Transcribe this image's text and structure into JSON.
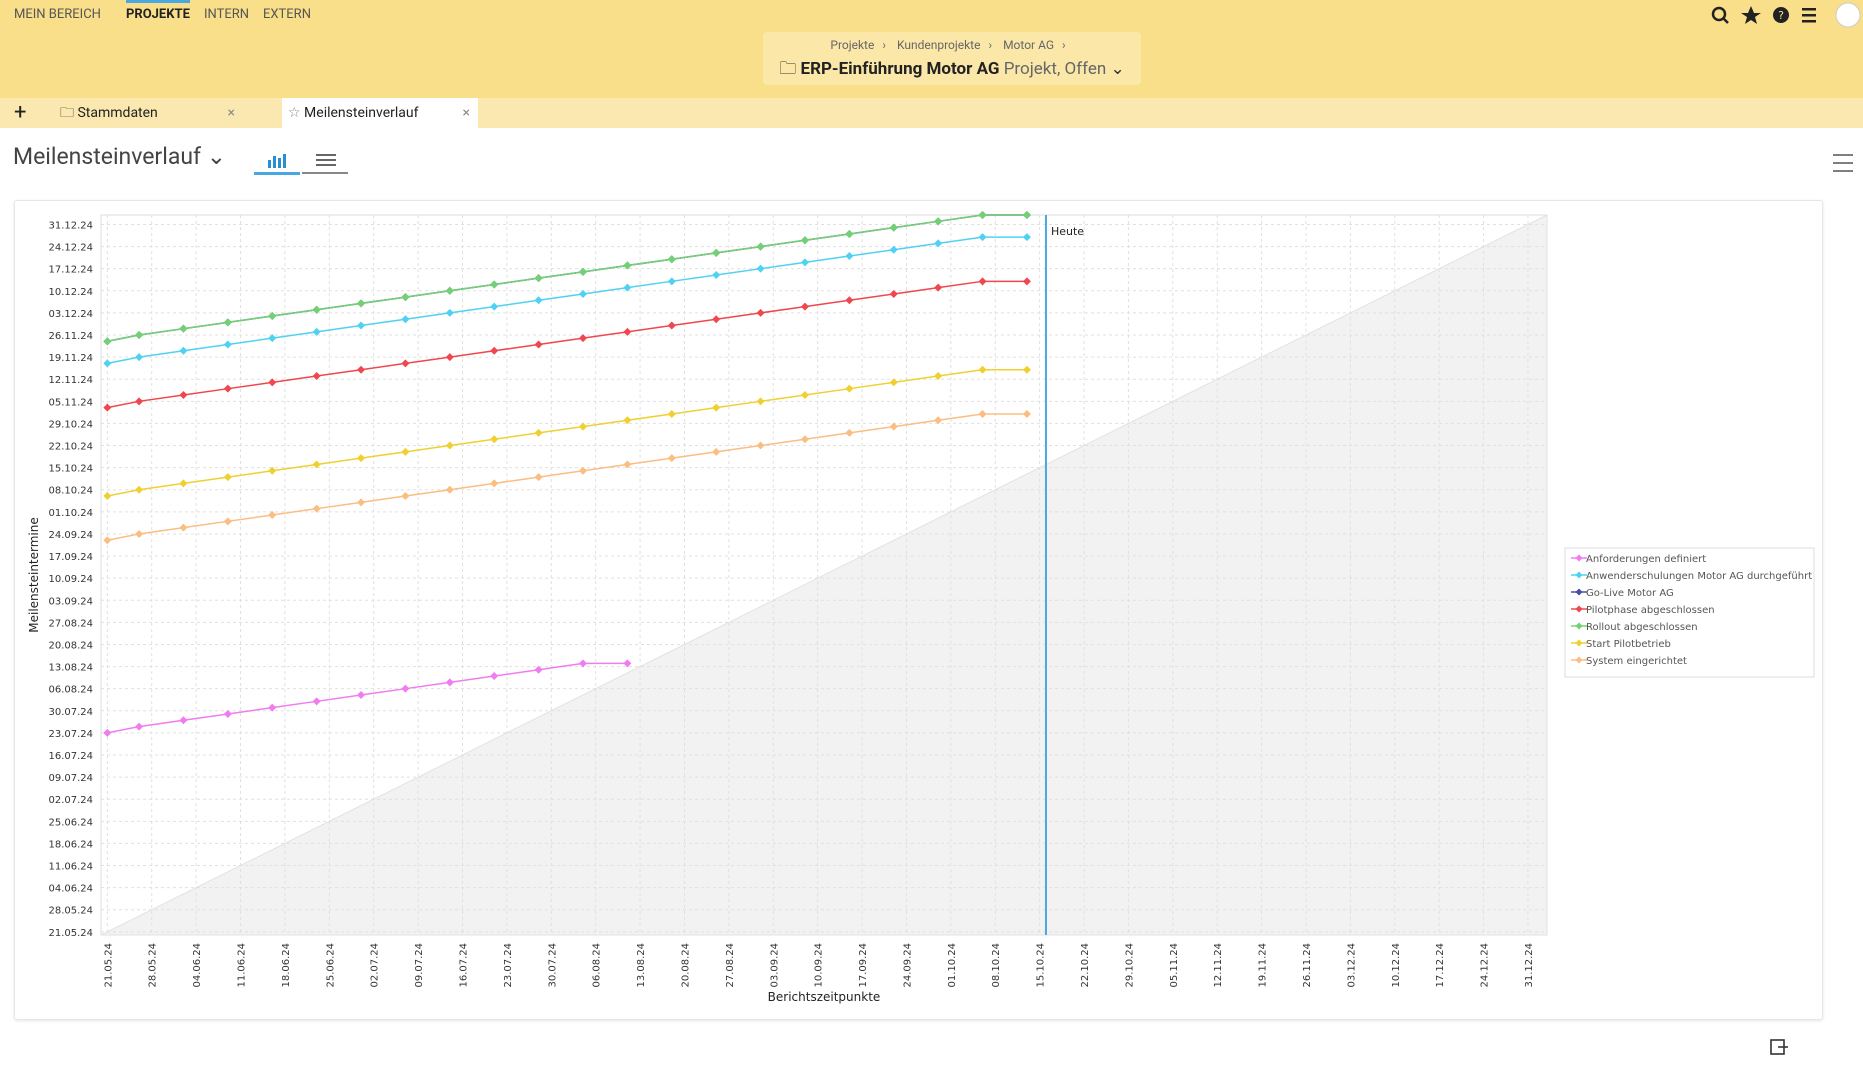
{
  "ui": {
    "nav": [
      "MEIN BEREICH",
      "PROJEKTE",
      "INTERN",
      "EXTERN"
    ],
    "breadcrumb": [
      "Projekte",
      "Kundenprojekte",
      "Motor AG"
    ],
    "project_title": "ERP-Einführung Motor AG",
    "project_status": "Projekt, Offen",
    "tabs": [
      "Stammdaten",
      "Meilensteinverlauf"
    ],
    "page_title": "Meilensteinverlauf"
  },
  "chart_data": {
    "type": "line",
    "x_label": "Berichtszeitpunkte",
    "y_label": "Meilensteintermine",
    "grid": true,
    "legend": "right",
    "annotation": {
      "text": "Heute",
      "x": "2024-10-16",
      "color": "#4aa8e0"
    },
    "x": [
      "2024-05-21",
      "2024-05-26",
      "2024-06-02",
      "2024-06-09",
      "2024-06-16",
      "2024-06-23",
      "2024-06-30",
      "2024-07-07",
      "2024-07-14",
      "2024-07-21",
      "2024-07-28",
      "2024-08-04",
      "2024-08-11",
      "2024-08-18",
      "2024-08-25",
      "2024-09-01",
      "2024-09-08",
      "2024-09-15",
      "2024-09-22",
      "2024-09-29",
      "2024-10-06",
      "2024-10-13"
    ],
    "xlim": [
      "2024-05-20",
      "2025-01-03"
    ],
    "ylim": [
      "2024-05-20",
      "2025-01-03"
    ],
    "xticks": [
      {
        "value": "2024-05-21",
        "label": "21.05.24"
      },
      {
        "value": "2024-05-28",
        "label": "28.05.24"
      },
      {
        "value": "2024-06-04",
        "label": "04.06.24"
      },
      {
        "value": "2024-06-11",
        "label": "11.06.24"
      },
      {
        "value": "2024-06-18",
        "label": "18.06.24"
      },
      {
        "value": "2024-06-25",
        "label": "25.06.24"
      },
      {
        "value": "2024-07-02",
        "label": "02.07.24"
      },
      {
        "value": "2024-07-09",
        "label": "09.07.24"
      },
      {
        "value": "2024-07-16",
        "label": "16.07.24"
      },
      {
        "value": "2024-07-23",
        "label": "23.07.24"
      },
      {
        "value": "2024-07-30",
        "label": "30.07.24"
      },
      {
        "value": "2024-08-06",
        "label": "06.08.24"
      },
      {
        "value": "2024-08-13",
        "label": "13.08.24"
      },
      {
        "value": "2024-08-20",
        "label": "20.08.24"
      },
      {
        "value": "2024-08-27",
        "label": "27.08.24"
      },
      {
        "value": "2024-09-03",
        "label": "03.09.24"
      },
      {
        "value": "2024-09-10",
        "label": "10.09.24"
      },
      {
        "value": "2024-09-17",
        "label": "17.09.24"
      },
      {
        "value": "2024-09-24",
        "label": "24.09.24"
      },
      {
        "value": "2024-10-01",
        "label": "01.10.24"
      },
      {
        "value": "2024-10-08",
        "label": "08.10.24"
      },
      {
        "value": "2024-10-15",
        "label": "15.10.24"
      },
      {
        "value": "2024-10-22",
        "label": "22.10.24"
      },
      {
        "value": "2024-10-29",
        "label": "29.10.24"
      },
      {
        "value": "2024-11-05",
        "label": "05.11.24"
      },
      {
        "value": "2024-11-12",
        "label": "12.11.24"
      },
      {
        "value": "2024-11-19",
        "label": "19.11.24"
      },
      {
        "value": "2024-11-26",
        "label": "26.11.24"
      },
      {
        "value": "2024-12-03",
        "label": "03.12.24"
      },
      {
        "value": "2024-12-10",
        "label": "10.12.24"
      },
      {
        "value": "2024-12-17",
        "label": "17.12.24"
      },
      {
        "value": "2024-12-24",
        "label": "24.12.24"
      },
      {
        "value": "2024-12-31",
        "label": "31.12.24"
      }
    ],
    "yticks": [
      {
        "value": "2024-05-21",
        "label": "21.05.24"
      },
      {
        "value": "2024-05-28",
        "label": "28.05.24"
      },
      {
        "value": "2024-06-04",
        "label": "04.06.24"
      },
      {
        "value": "2024-06-11",
        "label": "11.06.24"
      },
      {
        "value": "2024-06-18",
        "label": "18.06.24"
      },
      {
        "value": "2024-06-25",
        "label": "25.06.24"
      },
      {
        "value": "2024-07-02",
        "label": "02.07.24"
      },
      {
        "value": "2024-07-09",
        "label": "09.07.24"
      },
      {
        "value": "2024-07-16",
        "label": "16.07.24"
      },
      {
        "value": "2024-07-23",
        "label": "23.07.24"
      },
      {
        "value": "2024-07-30",
        "label": "30.07.24"
      },
      {
        "value": "2024-08-06",
        "label": "06.08.24"
      },
      {
        "value": "2024-08-13",
        "label": "13.08.24"
      },
      {
        "value": "2024-08-20",
        "label": "20.08.24"
      },
      {
        "value": "2024-08-27",
        "label": "27.08.24"
      },
      {
        "value": "2024-09-03",
        "label": "03.09.24"
      },
      {
        "value": "2024-09-10",
        "label": "10.09.24"
      },
      {
        "value": "2024-09-17",
        "label": "17.09.24"
      },
      {
        "value": "2024-09-24",
        "label": "24.09.24"
      },
      {
        "value": "2024-10-01",
        "label": "01.10.24"
      },
      {
        "value": "2024-10-08",
        "label": "08.10.24"
      },
      {
        "value": "2024-10-15",
        "label": "15.10.24"
      },
      {
        "value": "2024-10-22",
        "label": "22.10.24"
      },
      {
        "value": "2024-10-29",
        "label": "29.10.24"
      },
      {
        "value": "2024-11-05",
        "label": "05.11.24"
      },
      {
        "value": "2024-11-12",
        "label": "12.11.24"
      },
      {
        "value": "2024-11-19",
        "label": "19.11.24"
      },
      {
        "value": "2024-11-26",
        "label": "26.11.24"
      },
      {
        "value": "2024-12-03",
        "label": "03.12.24"
      },
      {
        "value": "2024-12-10",
        "label": "10.12.24"
      },
      {
        "value": "2024-12-17",
        "label": "17.12.24"
      },
      {
        "value": "2024-12-24",
        "label": "24.12.24"
      },
      {
        "value": "2024-12-31",
        "label": "31.12.24"
      }
    ],
    "series": [
      {
        "name": "Anforderungen definiert",
        "color": "#f07cf0",
        "values": [
          "2024-07-23",
          "2024-07-25",
          "2024-07-27",
          "2024-07-29",
          "2024-07-31",
          "2024-08-02",
          "2024-08-04",
          "2024-08-06",
          "2024-08-08",
          "2024-08-10",
          "2024-08-12",
          "2024-08-14",
          "2024-08-14",
          null,
          null,
          null,
          null,
          null,
          null,
          null,
          null,
          null
        ]
      },
      {
        "name": "Anwenderschulungen Motor AG durchgeführt",
        "color": "#4fd2f2",
        "values": [
          "2024-11-17",
          "2024-11-19",
          "2024-11-21",
          "2024-11-23",
          "2024-11-25",
          "2024-11-27",
          "2024-11-29",
          "2024-12-01",
          "2024-12-03",
          "2024-12-05",
          "2024-12-07",
          "2024-12-09",
          "2024-12-11",
          "2024-12-13",
          "2024-12-15",
          "2024-12-17",
          "2024-12-19",
          "2024-12-21",
          "2024-12-23",
          "2024-12-25",
          "2024-12-27",
          "2024-12-27"
        ]
      },
      {
        "name": "Go-Live Motor AG",
        "color": "#4b4ba8",
        "values": [
          "2024-11-24",
          "2024-11-26",
          "2024-11-28",
          "2024-11-30",
          "2024-12-02",
          "2024-12-04",
          "2024-12-06",
          "2024-12-08",
          "2024-12-10",
          "2024-12-12",
          "2024-12-14",
          "2024-12-16",
          "2024-12-18",
          "2024-12-20",
          "2024-12-22",
          "2024-12-24",
          "2024-12-26",
          "2024-12-28",
          "2024-12-30",
          "2025-01-01",
          "2025-01-03",
          "2025-01-03"
        ]
      },
      {
        "name": "Pilotphase abgeschlossen",
        "color": "#f0464e",
        "values": [
          "2024-11-03",
          "2024-11-05",
          "2024-11-07",
          "2024-11-09",
          "2024-11-11",
          "2024-11-13",
          "2024-11-15",
          "2024-11-17",
          "2024-11-19",
          "2024-11-21",
          "2024-11-23",
          "2024-11-25",
          "2024-11-27",
          "2024-11-29",
          "2024-12-01",
          "2024-12-03",
          "2024-12-05",
          "2024-12-07",
          "2024-12-09",
          "2024-12-11",
          "2024-12-13",
          "2024-12-13"
        ]
      },
      {
        "name": "Rollout abgeschlossen",
        "color": "#72d272",
        "values": [
          "2024-11-24",
          "2024-11-26",
          "2024-11-28",
          "2024-11-30",
          "2024-12-02",
          "2024-12-04",
          "2024-12-06",
          "2024-12-08",
          "2024-12-10",
          "2024-12-12",
          "2024-12-14",
          "2024-12-16",
          "2024-12-18",
          "2024-12-20",
          "2024-12-22",
          "2024-12-24",
          "2024-12-26",
          "2024-12-28",
          "2024-12-30",
          "2025-01-01",
          "2025-01-03",
          "2025-01-03"
        ]
      },
      {
        "name": "Start Pilotbetrieb",
        "color": "#f0d030",
        "values": [
          "2024-10-06",
          "2024-10-08",
          "2024-10-10",
          "2024-10-12",
          "2024-10-14",
          "2024-10-16",
          "2024-10-18",
          "2024-10-20",
          "2024-10-22",
          "2024-10-24",
          "2024-10-26",
          "2024-10-28",
          "2024-10-30",
          "2024-11-01",
          "2024-11-03",
          "2024-11-05",
          "2024-11-07",
          "2024-11-09",
          "2024-11-11",
          "2024-11-13",
          "2024-11-15",
          "2024-11-15"
        ]
      },
      {
        "name": "System eingerichtet",
        "color": "#fbbd82",
        "values": [
          "2024-09-22",
          "2024-09-24",
          "2024-09-26",
          "2024-09-28",
          "2024-09-30",
          "2024-10-02",
          "2024-10-04",
          "2024-10-06",
          "2024-10-08",
          "2024-10-10",
          "2024-10-12",
          "2024-10-14",
          "2024-10-16",
          "2024-10-18",
          "2024-10-20",
          "2024-10-22",
          "2024-10-24",
          "2024-10-26",
          "2024-10-28",
          "2024-10-30",
          "2024-11-01",
          "2024-11-01"
        ]
      }
    ]
  }
}
